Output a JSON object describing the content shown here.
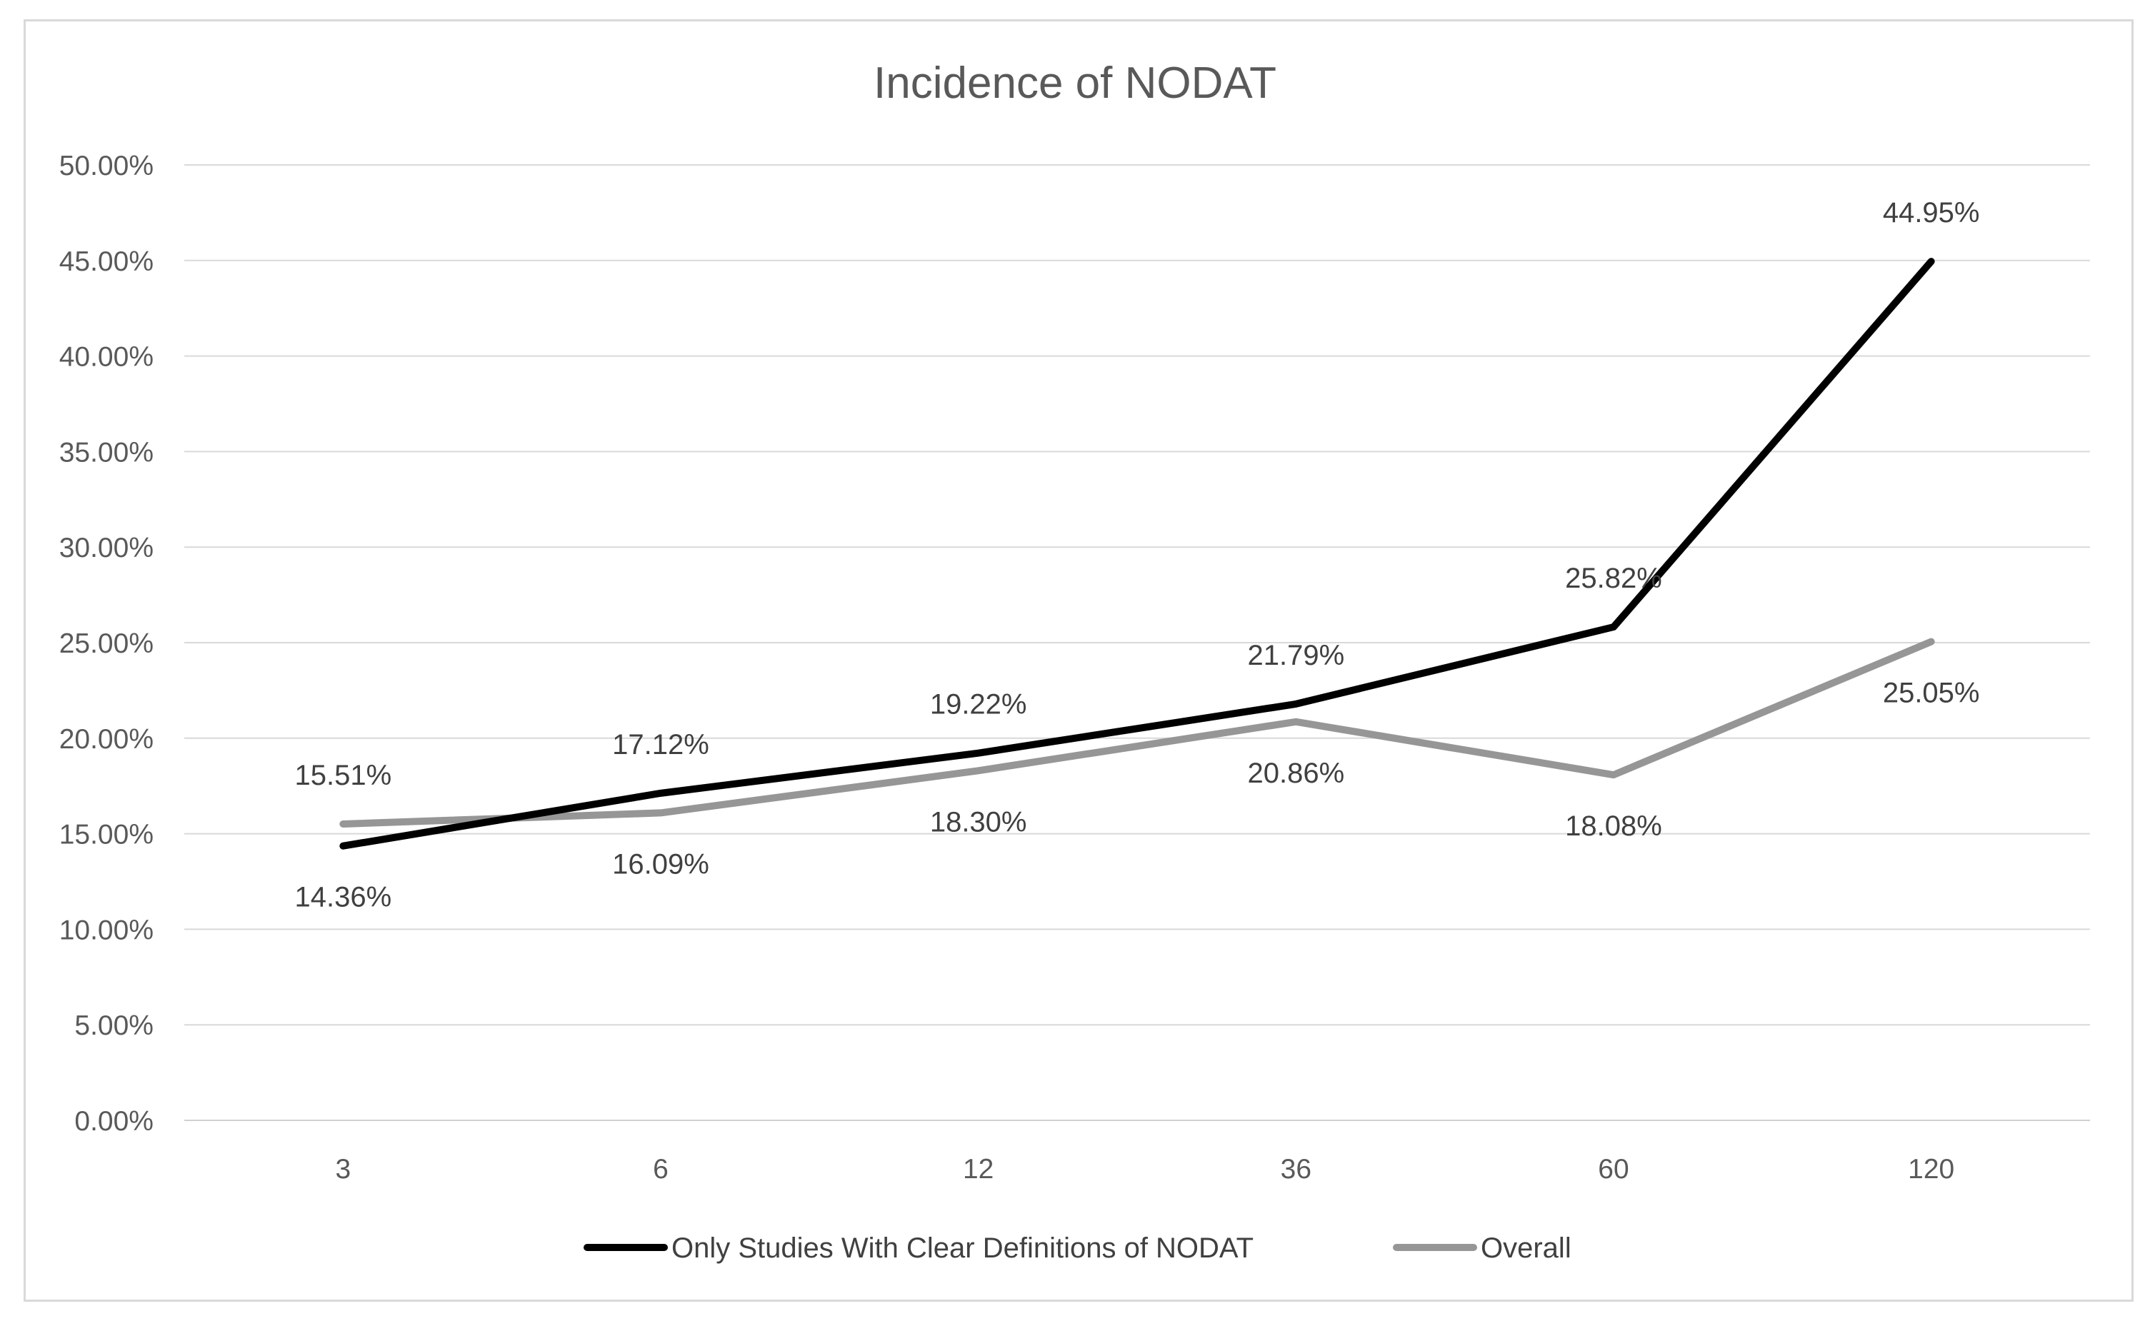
{
  "chart_data": {
    "type": "line",
    "title": "Incidence of NODAT",
    "xlabel": "",
    "ylabel": "",
    "categories": [
      "3",
      "6",
      "12",
      "36",
      "60",
      "120"
    ],
    "ylim": [
      0,
      50
    ],
    "yticks": [
      "0.00%",
      "5.00%",
      "10.00%",
      "15.00%",
      "20.00%",
      "25.00%",
      "30.00%",
      "35.00%",
      "40.00%",
      "45.00%",
      "50.00%"
    ],
    "grid": true,
    "legend_position": "bottom",
    "series": [
      {
        "name": "Only Studies With Clear Definitions of NODAT",
        "color": "#000000",
        "values": [
          14.36,
          17.12,
          19.22,
          21.79,
          25.82,
          44.95
        ],
        "labels": [
          "14.36%",
          "17.12%",
          "19.22%",
          "21.79%",
          "25.82%",
          "44.95%"
        ]
      },
      {
        "name": "Overall",
        "color": "#969696",
        "values": [
          15.51,
          16.09,
          18.3,
          20.86,
          18.08,
          25.05
        ],
        "labels": [
          "15.51%",
          "16.09%",
          "18.30%",
          "20.86%",
          "18.08%",
          "25.05%"
        ]
      }
    ]
  }
}
